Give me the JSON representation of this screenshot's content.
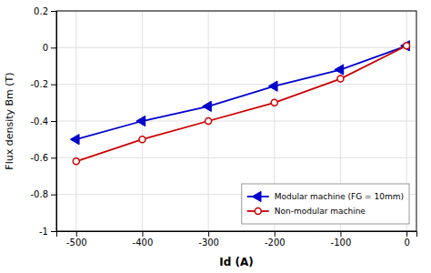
{
  "chart_data": {
    "type": "line",
    "xlabel": "Id (A)",
    "ylabel": "Flux density Bm (T)",
    "x": [
      -500,
      -400,
      -300,
      -200,
      -100,
      0
    ],
    "series": [
      {
        "name": "Modular machine (FG = 10mm)",
        "color": "#0000cc",
        "marker": "triangle-left",
        "values": [
          -0.5,
          -0.4,
          -0.32,
          -0.21,
          -0.12,
          0.01
        ]
      },
      {
        "name": "Non-modular machine",
        "color": "#cc0000",
        "marker": "circle-open",
        "values": [
          -0.62,
          -0.5,
          -0.4,
          -0.3,
          -0.17,
          0.01
        ]
      }
    ],
    "xlim": [
      -530,
      15
    ],
    "ylim": [
      -1.0,
      0.2
    ],
    "xticks": [
      -500,
      -400,
      -300,
      -200,
      -100,
      0
    ],
    "yticks": [
      -1.0,
      -0.8,
      -0.6,
      -0.4,
      -0.2,
      0.0,
      0.2
    ],
    "grid": true,
    "legend": "lower right"
  }
}
